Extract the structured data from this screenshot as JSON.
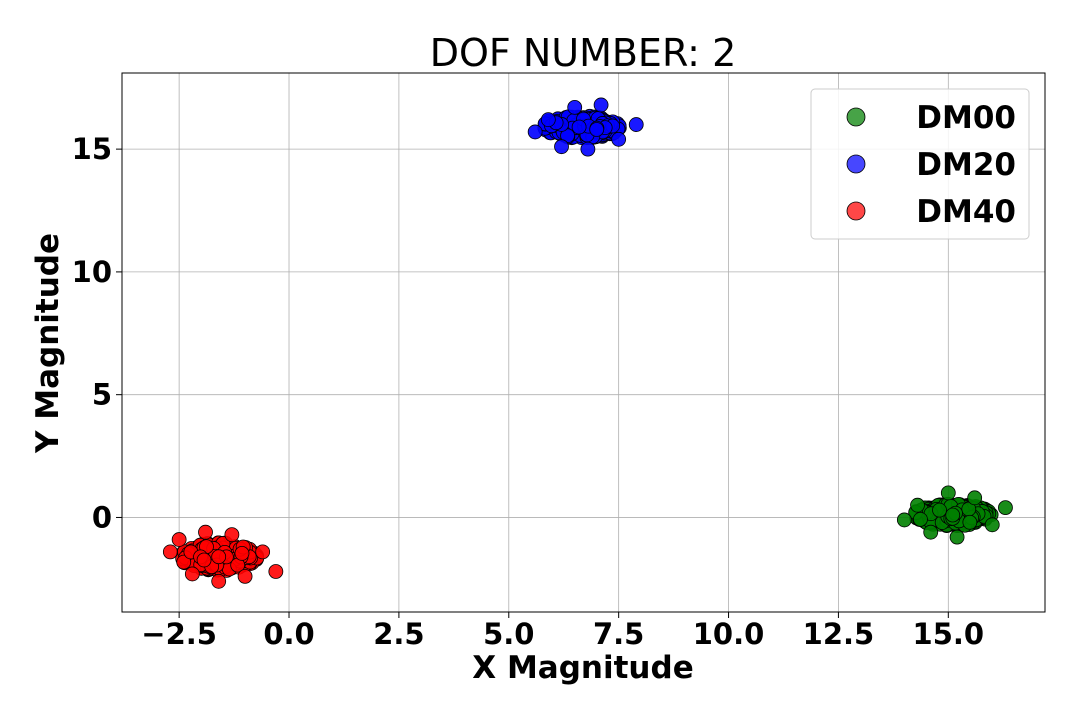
{
  "chart_data": {
    "type": "scatter",
    "title": "DOF NUMBER: 2",
    "xlabel": "X Magnitude",
    "ylabel": "Y Magnitude",
    "xlim": [
      -3.8,
      17.2
    ],
    "ylim": [
      -3.85,
      18.1
    ],
    "xticks": [
      -2.5,
      0.0,
      2.5,
      5.0,
      7.5,
      10.0,
      12.5,
      15.0
    ],
    "xtick_labels": [
      "−2.5",
      "0.0",
      "2.5",
      "5.0",
      "7.5",
      "10.0",
      "12.5",
      "15.0"
    ],
    "yticks": [
      0,
      5,
      10,
      15
    ],
    "ytick_labels": [
      "0",
      "5",
      "10",
      "15"
    ],
    "grid": true,
    "legend_position": "top-right",
    "series": [
      {
        "name": "DM00",
        "color": "#008000",
        "cluster": {
          "center": [
            15.1,
            0.1
          ],
          "spread": [
            0.95,
            0.48
          ],
          "count": 260
        },
        "points": [
          [
            14.0,
            -0.1
          ],
          [
            14.3,
            0.5
          ],
          [
            14.6,
            -0.6
          ],
          [
            15.0,
            1.0
          ],
          [
            15.2,
            -0.8
          ],
          [
            15.6,
            0.8
          ],
          [
            16.0,
            -0.3
          ],
          [
            16.3,
            0.4
          ],
          [
            15.1,
            0.1
          ],
          [
            14.8,
            0.3
          ]
        ]
      },
      {
        "name": "DM20",
        "color": "#0000ff",
        "cluster": {
          "center": [
            6.65,
            15.9
          ],
          "spread": [
            0.95,
            0.5
          ],
          "count": 260
        },
        "points": [
          [
            5.6,
            15.7
          ],
          [
            5.9,
            16.2
          ],
          [
            6.2,
            15.1
          ],
          [
            6.5,
            16.7
          ],
          [
            6.8,
            15.0
          ],
          [
            7.1,
            16.8
          ],
          [
            7.5,
            15.4
          ],
          [
            7.9,
            16.0
          ],
          [
            6.6,
            15.9
          ],
          [
            7.0,
            15.8
          ]
        ]
      },
      {
        "name": "DM40",
        "color": "#ff0000",
        "cluster": {
          "center": [
            -1.6,
            -1.6
          ],
          "spread": [
            0.95,
            0.62
          ],
          "count": 260
        },
        "points": [
          [
            -2.7,
            -1.4
          ],
          [
            -2.5,
            -0.9
          ],
          [
            -2.2,
            -2.3
          ],
          [
            -1.9,
            -0.6
          ],
          [
            -1.6,
            -2.6
          ],
          [
            -1.3,
            -0.7
          ],
          [
            -1.0,
            -2.4
          ],
          [
            -0.6,
            -1.4
          ],
          [
            -0.3,
            -2.2
          ],
          [
            -1.6,
            -1.6
          ]
        ]
      }
    ]
  }
}
